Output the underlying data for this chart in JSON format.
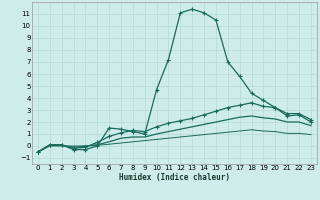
{
  "bg_color": "#ceecea",
  "grid_color": "#b8d8d5",
  "line_color": "#1a6b5a",
  "xlabel": "Humidex (Indice chaleur)",
  "x_ticks": [
    0,
    1,
    2,
    3,
    4,
    5,
    6,
    7,
    8,
    9,
    10,
    11,
    12,
    13,
    14,
    15,
    16,
    17,
    18,
    19,
    20,
    21,
    22,
    23
  ],
  "ylim": [
    -1.5,
    12.0
  ],
  "xlim": [
    -0.5,
    23.5
  ],
  "y_ticks": [
    -1,
    0,
    1,
    2,
    3,
    4,
    5,
    6,
    7,
    8,
    9,
    10,
    11
  ],
  "curve1_x": [
    0,
    1,
    2,
    3,
    4,
    5,
    6,
    7,
    8,
    9,
    10,
    11,
    12,
    13,
    14,
    15,
    16,
    17,
    18,
    19,
    20,
    21,
    22,
    23
  ],
  "curve1_y": [
    -0.5,
    0.1,
    0.1,
    -0.3,
    -0.3,
    0.0,
    1.5,
    1.4,
    1.2,
    1.0,
    4.7,
    7.2,
    11.1,
    11.4,
    11.1,
    10.5,
    7.0,
    5.8,
    4.4,
    3.8,
    3.2,
    2.5,
    2.6,
    2.0
  ],
  "curve2_x": [
    0,
    1,
    2,
    3,
    4,
    5,
    6,
    7,
    8,
    9,
    10,
    11,
    12,
    13,
    14,
    15,
    16,
    17,
    18,
    19,
    20,
    21,
    22,
    23
  ],
  "curve2_y": [
    -0.5,
    0.1,
    0.1,
    -0.2,
    -0.1,
    0.3,
    0.8,
    1.1,
    1.3,
    1.2,
    1.6,
    1.9,
    2.1,
    2.3,
    2.6,
    2.9,
    3.2,
    3.4,
    3.6,
    3.3,
    3.2,
    2.7,
    2.7,
    2.2
  ],
  "curve3_x": [
    0,
    1,
    2,
    3,
    4,
    5,
    6,
    7,
    8,
    9,
    10,
    11,
    12,
    13,
    14,
    15,
    16,
    17,
    18,
    19,
    20,
    21,
    22,
    23
  ],
  "curve3_y": [
    -0.5,
    0.05,
    0.05,
    -0.1,
    0.0,
    0.1,
    0.35,
    0.65,
    0.75,
    0.75,
    1.0,
    1.2,
    1.4,
    1.6,
    1.8,
    2.0,
    2.2,
    2.4,
    2.5,
    2.35,
    2.25,
    2.0,
    2.0,
    1.7
  ],
  "curve4_x": [
    0,
    1,
    2,
    3,
    4,
    5,
    6,
    7,
    8,
    9,
    10,
    11,
    12,
    13,
    14,
    15,
    16,
    17,
    18,
    19,
    20,
    21,
    22,
    23
  ],
  "curve4_y": [
    -0.5,
    0.0,
    0.0,
    0.0,
    0.0,
    0.05,
    0.15,
    0.25,
    0.35,
    0.45,
    0.55,
    0.65,
    0.75,
    0.85,
    0.95,
    1.05,
    1.15,
    1.25,
    1.35,
    1.25,
    1.2,
    1.05,
    1.05,
    0.95
  ]
}
